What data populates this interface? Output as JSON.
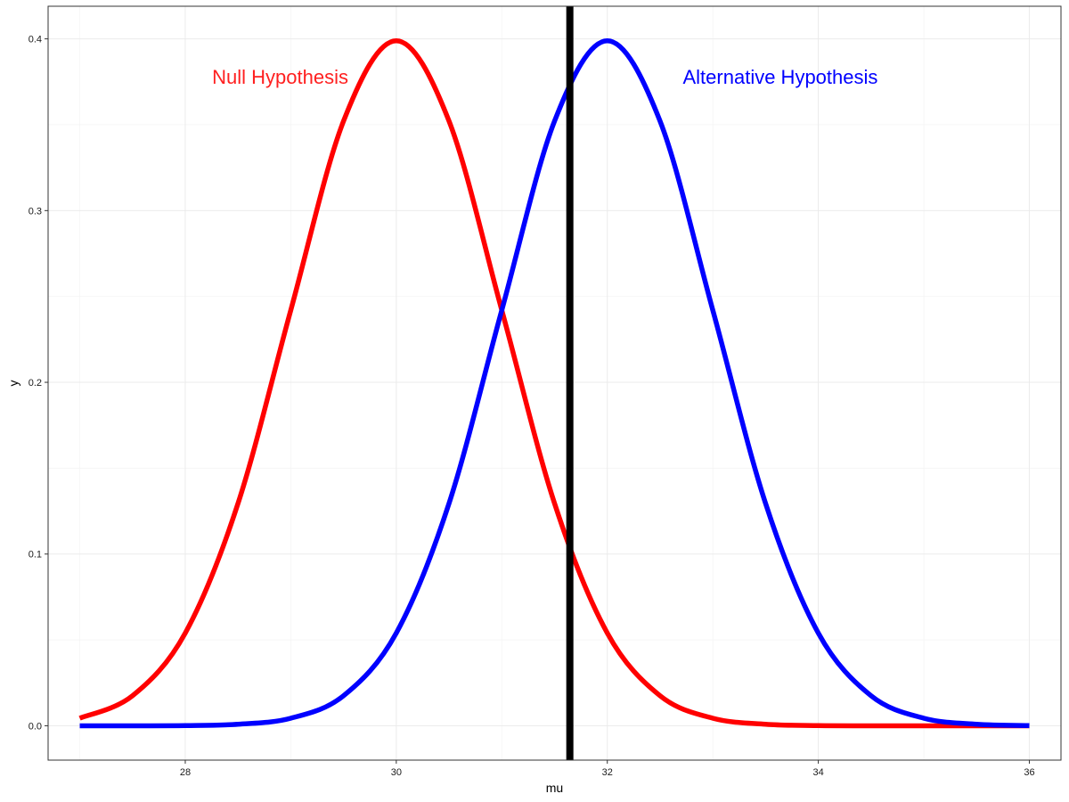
{
  "chart_data": {
    "type": "line",
    "xlabel": "mu",
    "ylabel": "y",
    "xlim": [
      26.7,
      36.3
    ],
    "ylim": [
      -0.02,
      0.419
    ],
    "x_ticks": [
      28,
      30,
      32,
      34,
      36
    ],
    "y_ticks": [
      0.0,
      0.1,
      0.2,
      0.3,
      0.4
    ],
    "x_tick_labels": [
      "28",
      "30",
      "32",
      "34",
      "36"
    ],
    "y_tick_labels": [
      "0.0",
      "0.1",
      "0.2",
      "0.3",
      "0.4"
    ],
    "grid": true,
    "series": [
      {
        "color": "#ff0000",
        "x": [
          27.0,
          27.5,
          28.0,
          28.5,
          29.0,
          29.5,
          30.0,
          30.5,
          31.0,
          31.5,
          32.0,
          32.5,
          33.0,
          33.5,
          34.0,
          34.5,
          35.0,
          35.5,
          36.0
        ],
        "y": [
          0.0044,
          0.0175,
          0.054,
          0.1295,
          0.242,
          0.3521,
          0.3989,
          0.3521,
          0.242,
          0.1295,
          0.054,
          0.0175,
          0.0044,
          0.0009,
          0.0001,
          0.0,
          0.0,
          0.0,
          0.0
        ]
      },
      {
        "color": "#0000ff",
        "x": [
          27.0,
          27.5,
          28.0,
          28.5,
          29.0,
          29.5,
          30.0,
          30.5,
          31.0,
          31.5,
          32.0,
          32.5,
          33.0,
          33.5,
          34.0,
          34.5,
          35.0,
          35.5,
          36.0
        ],
        "y": [
          0.0,
          0.0,
          0.0001,
          0.0009,
          0.0044,
          0.0175,
          0.054,
          0.1295,
          0.242,
          0.3521,
          0.3989,
          0.3521,
          0.242,
          0.1295,
          0.054,
          0.0175,
          0.0044,
          0.0009,
          0.0001
        ]
      }
    ],
    "vline": {
      "x": 31.645,
      "color": "#000000"
    },
    "annotations": [
      {
        "text": "Null Hypothesis",
        "x": 28.9,
        "y": 0.378,
        "color": "#ff2020"
      },
      {
        "text": "Alternative Hypothesis",
        "x": 33.64,
        "y": 0.378,
        "color": "#0000ff"
      }
    ]
  }
}
